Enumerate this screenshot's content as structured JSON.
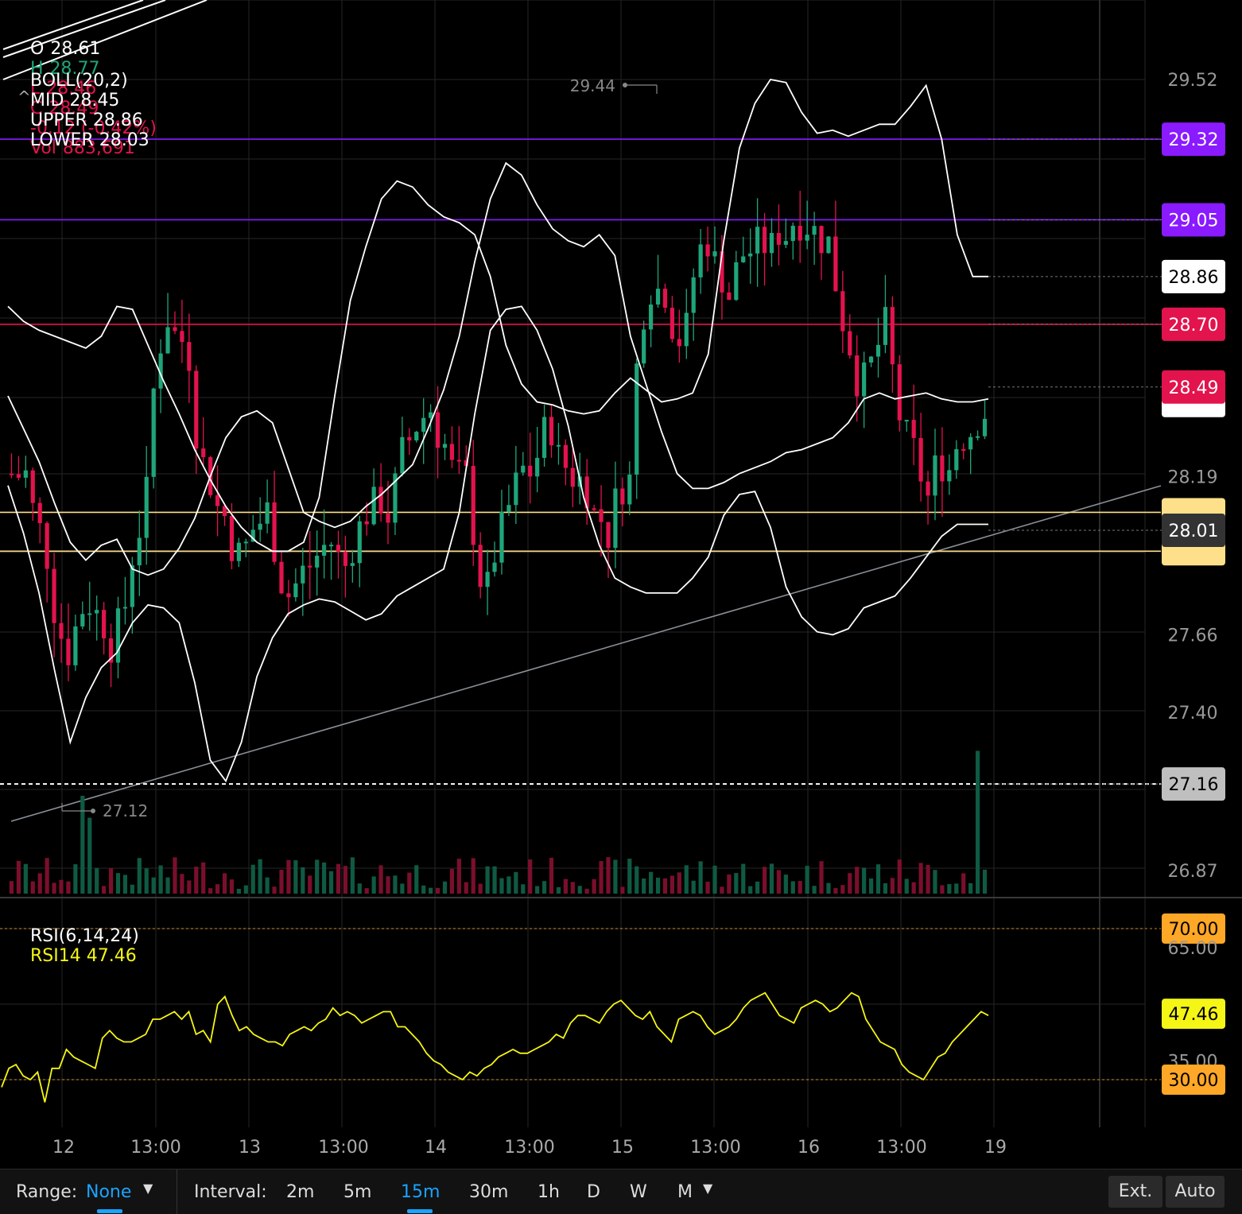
{
  "ohlc": {
    "o_label": "O",
    "o": "28.61",
    "h_label": "H",
    "h": "28.77",
    "l_label": "L",
    "l": "28.46",
    "c_label": "C",
    "c": "28.49",
    "change": "-0.12 (-0.42%)",
    "vol_label": "Vol",
    "vol": "883,691"
  },
  "boll": {
    "label": "BOLL(20,2)",
    "mid": "MID 28.45",
    "upper": "UPPER 28.86",
    "lower": "LOWER 28.03"
  },
  "collapse_glyph": "^",
  "rsi": {
    "label": "RSI(6,14,24)",
    "value_label": "RSI14 47.46"
  },
  "colors": {
    "up": "#1fa57a",
    "down": "#e2134d",
    "boll": "#ffffff",
    "rsi": "#f5f516",
    "purple": "#8a1aff",
    "red_line": "#e2134d",
    "yellow_line": "#ffe08a",
    "orange": "#ffa726"
  },
  "chart_data": [
    {
      "type": "candlestick",
      "ylim": [
        26.75,
        29.78
      ],
      "y_ticks": [
        "29.52",
        "28.19",
        "27.66",
        "27.40",
        "26.87"
      ],
      "x_ticks": [
        "12",
        "13:00",
        "13",
        "13:00",
        "14",
        "13:00",
        "15",
        "13:00",
        "16",
        "13:00",
        "19"
      ],
      "price_lines": [
        {
          "value": "29.32",
          "color": "purple"
        },
        {
          "value": "29.05",
          "color": "purple"
        },
        {
          "value": "28.70",
          "color": "red"
        },
        {
          "value": "28.07",
          "color": "yellow"
        },
        {
          "value": "27.94",
          "color": "yellow"
        },
        {
          "value": "27.16",
          "color": "dashed"
        }
      ],
      "axis_badges": [
        "29.32",
        "29.05",
        "28.86",
        "28.70",
        "28.49",
        "28.01",
        "27.16"
      ],
      "high_marker": "29.44",
      "low_marker": "27.12",
      "upper_band": [
        28.76,
        28.71,
        28.68,
        28.66,
        28.64,
        28.62,
        28.66,
        28.76,
        28.75,
        28.63,
        28.51,
        28.4,
        28.28,
        28.18,
        28.09,
        28.02,
        27.97,
        27.94,
        27.94,
        27.97,
        28.12,
        28.46,
        28.78,
        28.96,
        29.12,
        29.18,
        29.16,
        29.1,
        29.06,
        29.04,
        29.0,
        28.86,
        28.63,
        28.5,
        28.44,
        28.43,
        28.41,
        28.4,
        28.41,
        28.47,
        28.52,
        28.48,
        28.44,
        28.45,
        28.47,
        28.6,
        28.98,
        29.29,
        29.44,
        29.52,
        29.51,
        29.41,
        29.34,
        29.35,
        29.33,
        29.35,
        29.37,
        29.37,
        29.43,
        29.5,
        29.32,
        29.0,
        28.86,
        28.86
      ],
      "middle_band": [
        28.46,
        28.35,
        28.24,
        28.1,
        27.97,
        27.91,
        27.96,
        27.98,
        27.88,
        27.86,
        27.88,
        27.95,
        28.05,
        28.19,
        28.32,
        28.39,
        28.41,
        28.37,
        28.22,
        28.07,
        28.04,
        28.02,
        28.04,
        28.09,
        28.13,
        28.18,
        28.23,
        28.35,
        28.48,
        28.66,
        28.91,
        29.12,
        29.24,
        29.2,
        29.1,
        29.02,
        28.98,
        28.96,
        29.0,
        28.93,
        28.66,
        28.5,
        28.34,
        28.2,
        28.15,
        28.15,
        28.17,
        28.2,
        28.22,
        28.24,
        28.27,
        28.28,
        28.3,
        28.32,
        28.37,
        28.45,
        28.47,
        28.45,
        28.46,
        28.47,
        28.45,
        28.44,
        28.44,
        28.45
      ],
      "lower_band": [
        28.16,
        28.0,
        27.8,
        27.54,
        27.3,
        27.45,
        27.55,
        27.6,
        27.7,
        27.76,
        27.75,
        27.7,
        27.5,
        27.24,
        27.17,
        27.3,
        27.52,
        27.65,
        27.73,
        27.76,
        27.78,
        27.77,
        27.74,
        27.71,
        27.73,
        27.79,
        27.82,
        27.85,
        27.88,
        28.07,
        28.4,
        28.68,
        28.75,
        28.76,
        28.68,
        28.55,
        28.36,
        28.12,
        27.96,
        27.85,
        27.82,
        27.8,
        27.8,
        27.8,
        27.85,
        27.92,
        28.06,
        28.13,
        28.14,
        28.02,
        27.82,
        27.72,
        27.67,
        27.66,
        27.68,
        27.75,
        27.77,
        27.79,
        27.85,
        27.92,
        27.99,
        28.03,
        28.03,
        28.03
      ],
      "candles_note": "15-minute candles, 5 sessions"
    },
    {
      "type": "line",
      "name": "RSI14",
      "ylim": [
        20,
        80
      ],
      "levels": [
        "70.00",
        "65.00",
        "47.46",
        "35.00",
        "30.00"
      ],
      "values": [
        28,
        33,
        34,
        31,
        30,
        32,
        24,
        33,
        33,
        38,
        36,
        35,
        34,
        33,
        41,
        43,
        41,
        40,
        40,
        41,
        42,
        46,
        46,
        47,
        48,
        46,
        48,
        42,
        43,
        40,
        50,
        52,
        47,
        43,
        44,
        42,
        41,
        40,
        40,
        39,
        42,
        43,
        44,
        43,
        45,
        46,
        49,
        47,
        48,
        47,
        45,
        46,
        47,
        48,
        48,
        44,
        44,
        42,
        40,
        37,
        35,
        34,
        32,
        31,
        30,
        32,
        31,
        33,
        34,
        36,
        37,
        38,
        37,
        37,
        38,
        39,
        40,
        42,
        41,
        45,
        47,
        47,
        46,
        45,
        48,
        50,
        51,
        49,
        47,
        46,
        48,
        44,
        42,
        40,
        46,
        47,
        48,
        47,
        44,
        42,
        43,
        44,
        46,
        49,
        51,
        52,
        53,
        50,
        47,
        46,
        45,
        49,
        50,
        51,
        50,
        48,
        49,
        51,
        53,
        52,
        46,
        43,
        40,
        39,
        38,
        34,
        32,
        31,
        30,
        33,
        36,
        37,
        40,
        42,
        44,
        46,
        48,
        47
      ]
    }
  ],
  "bottom_bar": {
    "range_label": "Range:",
    "range_value": "None",
    "interval_label": "Interval:",
    "intervals": [
      "2m",
      "5m",
      "15m",
      "30m",
      "1h",
      "D",
      "W",
      "M"
    ],
    "selected_interval": "15m",
    "ext_label": "Ext.",
    "auto_label": "Auto"
  }
}
